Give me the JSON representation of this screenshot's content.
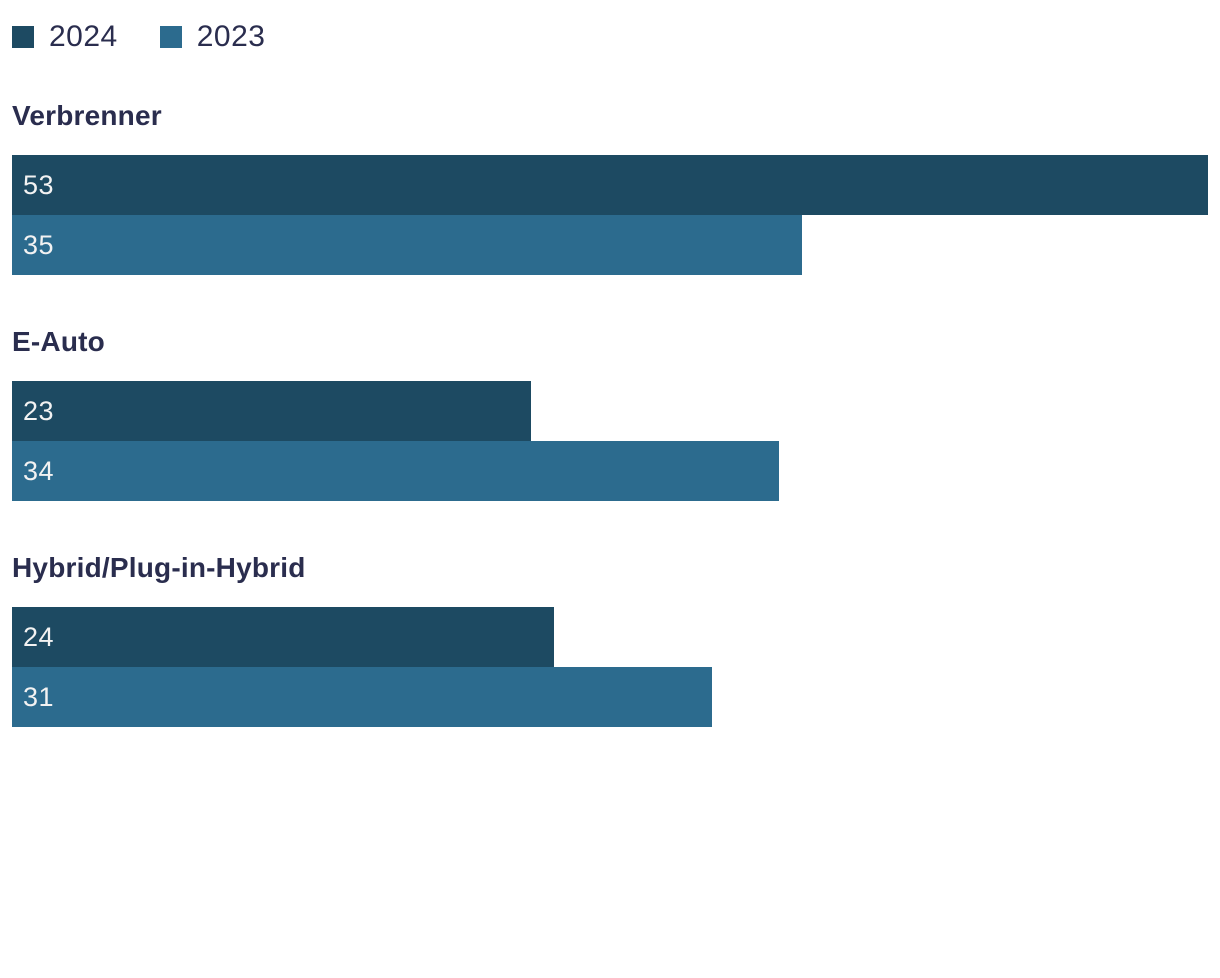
{
  "colors": {
    "series_2024": "#1d4a62",
    "series_2023": "#2c6b8e",
    "text": "#2a2d4e",
    "bar_label": "#f2f2f2",
    "background": "#ffffff"
  },
  "legend": {
    "items": [
      {
        "label": "2024",
        "color": "#1d4a62"
      },
      {
        "label": "2023",
        "color": "#2c6b8e"
      }
    ]
  },
  "chart_data": {
    "type": "bar",
    "orientation": "horizontal",
    "title": "",
    "xlabel": "",
    "ylabel": "",
    "categories": [
      "Verbrenner",
      "E-Auto",
      "Hybrid/Plug-in-Hybrid"
    ],
    "series": [
      {
        "name": "2024",
        "color": "#1d4a62",
        "values": [
          53,
          23,
          24
        ]
      },
      {
        "name": "2023",
        "color": "#2c6b8e",
        "values": [
          35,
          34,
          31
        ]
      }
    ],
    "xmax": 53,
    "value_labels_shown": true,
    "value_label_position": "inside-left",
    "legend_position": "top-left",
    "grid": false,
    "axis_ticks_shown": false
  }
}
